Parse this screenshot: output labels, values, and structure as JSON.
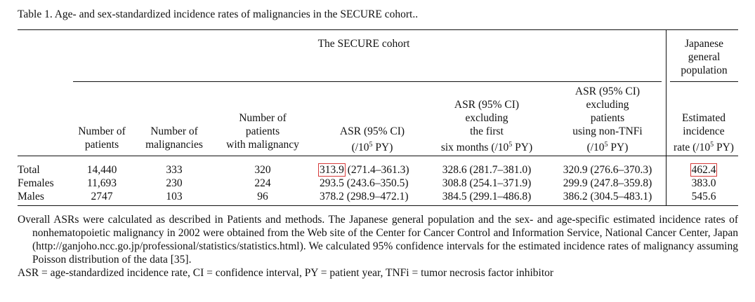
{
  "caption": "Table 1. Age- and sex-standardized incidence rates of malignancies in the SECURE cohort..",
  "group_headers": {
    "secure": "The SECURE cohort",
    "japan_line1": "Japanese",
    "japan_line2": "general",
    "japan_line3": "population"
  },
  "columns": {
    "num_patients": [
      "Number of",
      "patients"
    ],
    "num_malignancies": [
      "Number of",
      "malignancies"
    ],
    "patients_with_malignancy": [
      "Number of",
      "patients",
      "with malignancy"
    ],
    "asr": [
      "ASR (95% CI)",
      "(/10",
      "5",
      " PY)"
    ],
    "asr_excl_first": [
      "ASR (95% CI)",
      "excluding",
      "the first",
      "six months (/10",
      "5",
      " PY)"
    ],
    "asr_excl_nontnfi": [
      "ASR (95% CI)",
      "excluding",
      "patients",
      "using non-TNFi",
      "(/10",
      "5",
      " PY)"
    ],
    "estimated": [
      "Estimated",
      "incidence",
      "rate (/10",
      "5",
      " PY)"
    ]
  },
  "rows": [
    {
      "label": "Total",
      "patients": "14,440",
      "malignancies": "333",
      "with_malignancy": "320",
      "asr_value": "313.9",
      "asr_ci": " (271.4–361.3)",
      "excl_first": "328.6 (281.7–381.0)",
      "excl_nontnfi": "320.9 (276.6–370.3)",
      "estimated": "462.4"
    },
    {
      "label": "Females",
      "patients": "11,693",
      "malignancies": "230",
      "with_malignancy": "224",
      "asr_value": "293.5",
      "asr_ci": " (243.6–350.5)",
      "excl_first": "308.8 (254.1–371.9)",
      "excl_nontnfi": "299.9 (247.8–359.8)",
      "estimated": "383.0"
    },
    {
      "label": "Males",
      "patients": "2747",
      "malignancies": "103",
      "with_malignancy": "96",
      "asr_value": "378.2",
      "asr_ci": " (298.9–472.1)",
      "excl_first": "384.5 (299.1–486.8)",
      "excl_nontnfi": "386.2 (304.5–483.1)",
      "estimated": "545.6"
    }
  ],
  "footnote_1": "Overall ASRs were calculated as described in Patients and methods. The Japanese general population and the sex- and age-specific estimated incidence rates of nonhematopoietic malignancy in 2002 were obtained from the Web site of the Center for Cancer Control and Information Service, National Cancer Center, Japan (http://ganjoho.ncc.go.jp/professional/statistics/statistics.html). We calculated 95% confidence intervals for the estimated incidence rates of malignancy assuming Poisson distribution of the data [35].",
  "footnote_2": "ASR = age-standardized incidence rate, CI = confidence interval, PY = patient year, TNFi = tumor necrosis factor inhibitor",
  "highlight_color": "#d63a3a"
}
